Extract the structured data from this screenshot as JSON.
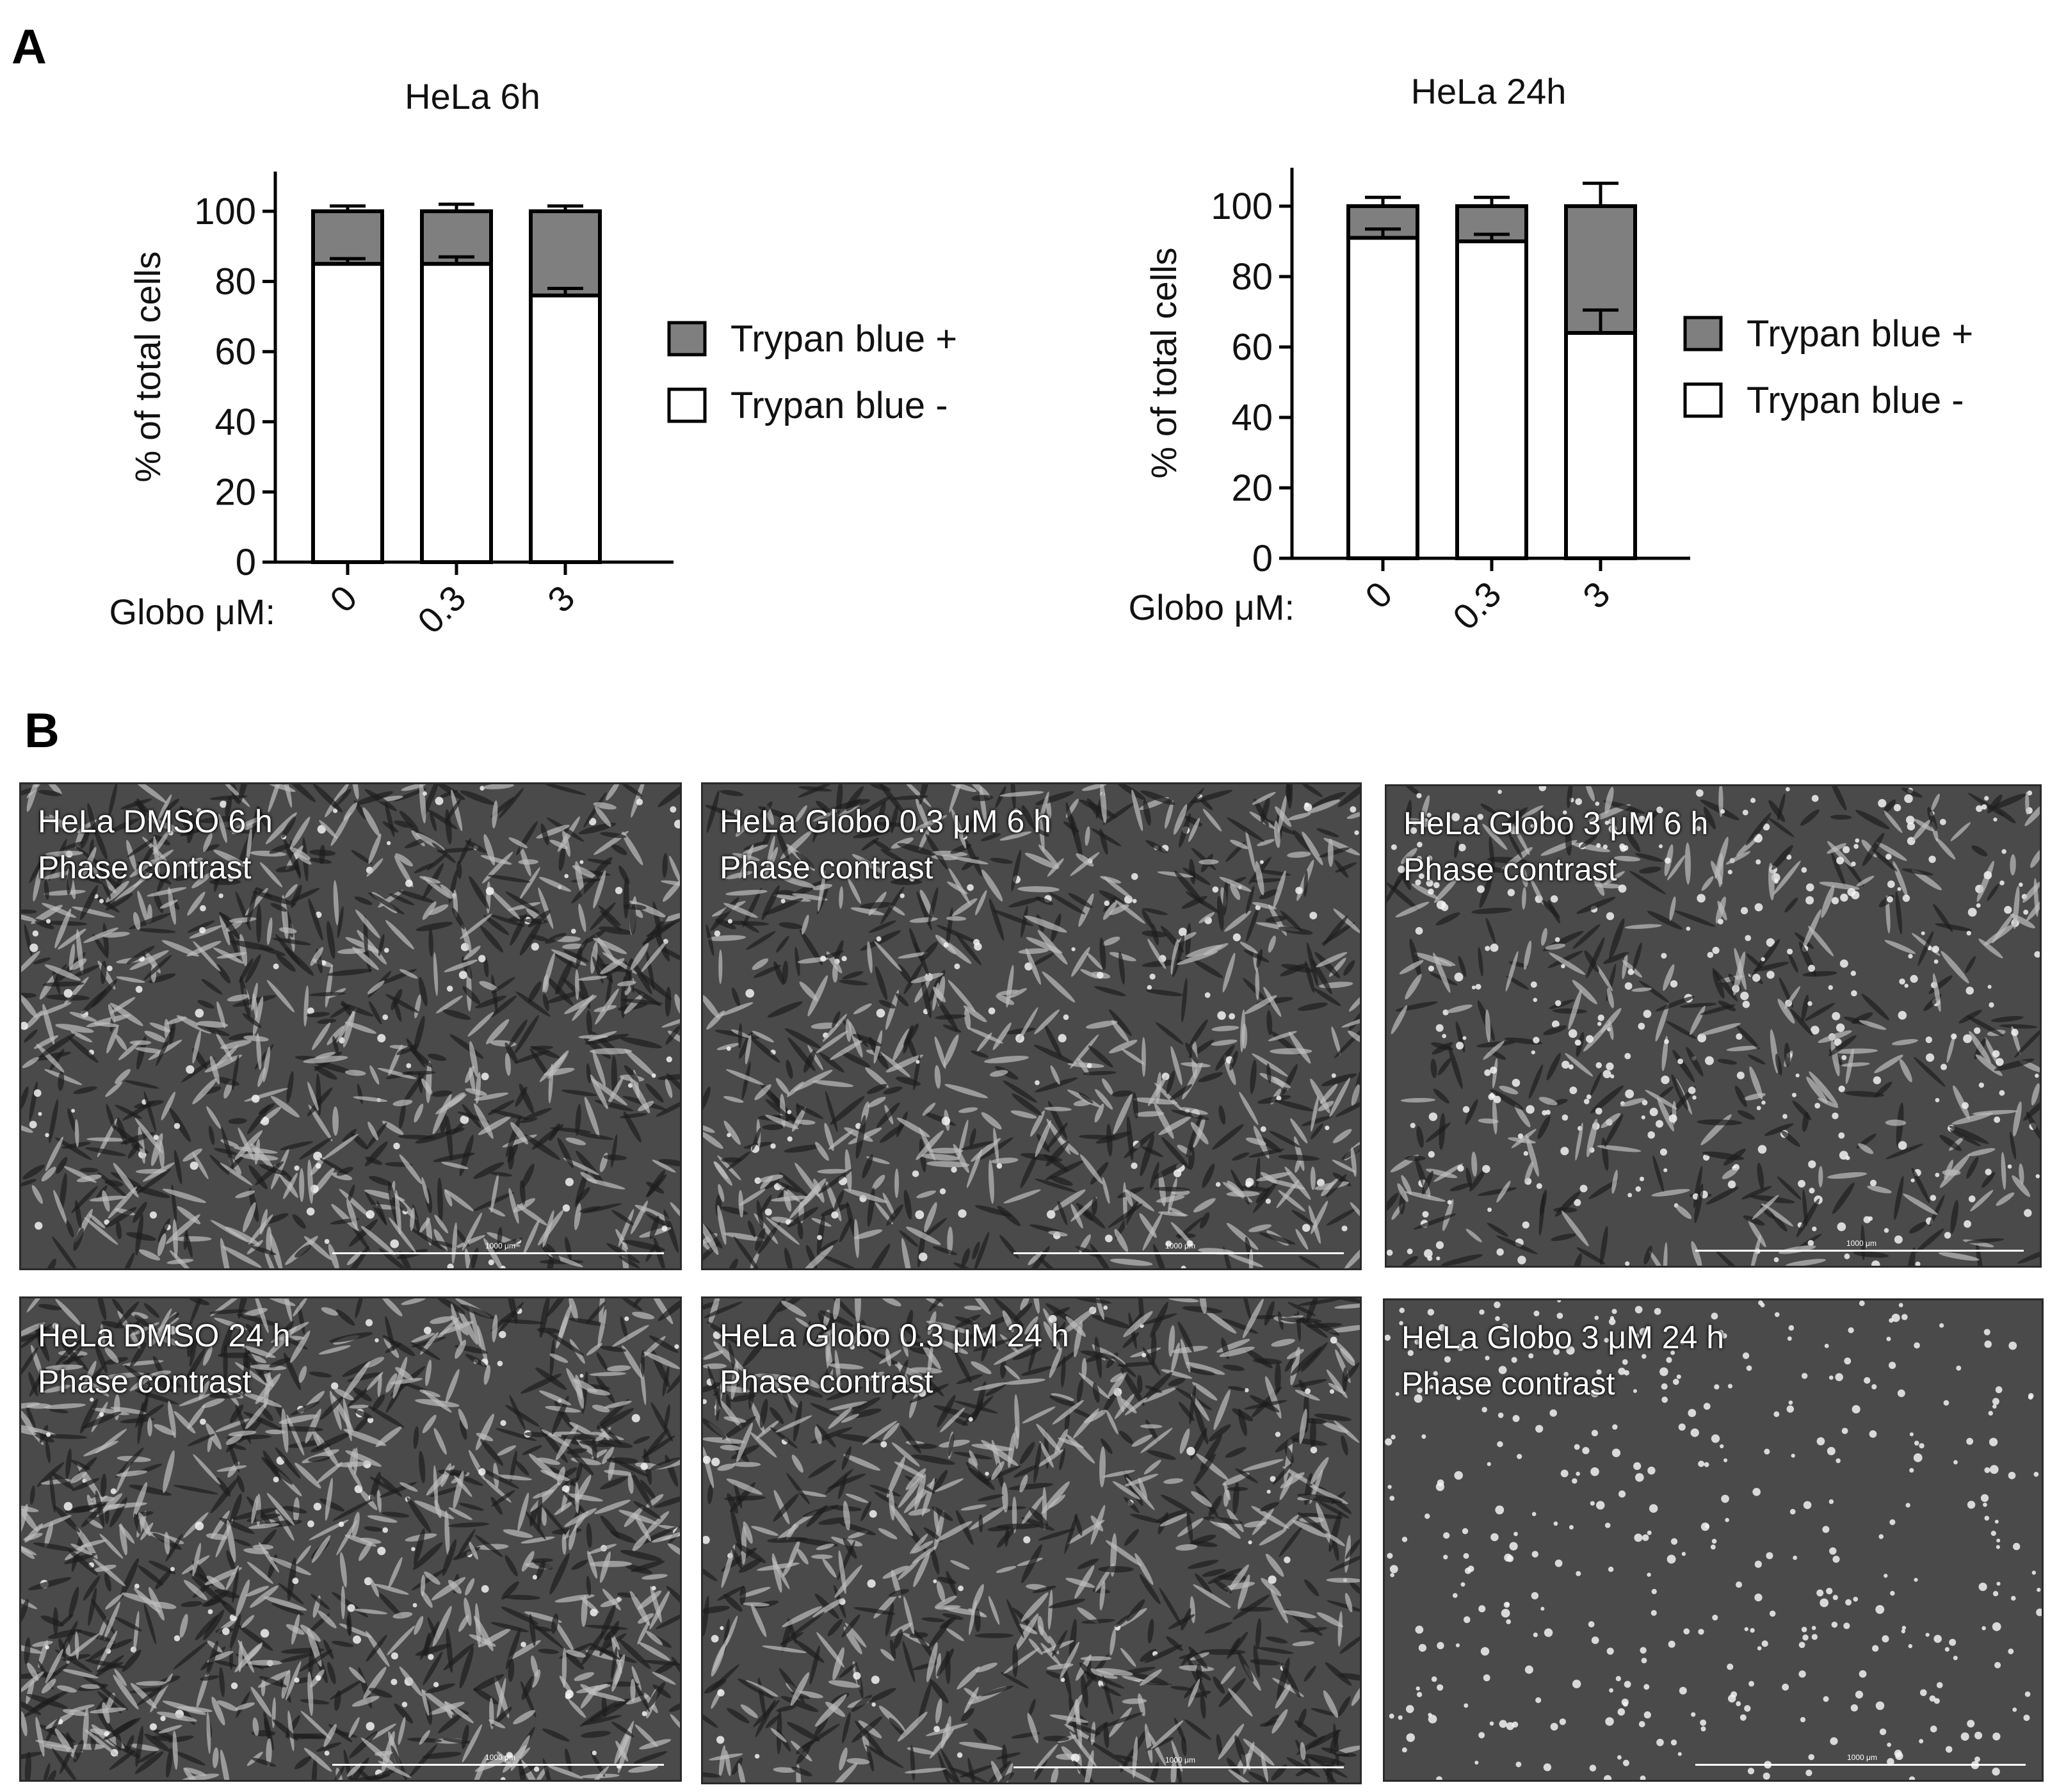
{
  "panel_labels": {
    "a": "A",
    "b": "B"
  },
  "legend": {
    "positive": "Trypan blue +",
    "negative": "Trypan blue -"
  },
  "colors": {
    "positive": "#7f7f7f",
    "negative": "#ffffff",
    "stroke": "#000000",
    "micro_bg": "#4a4a4a"
  },
  "chart_data": [
    {
      "type": "bar",
      "stacked": true,
      "title": "HeLa  6h",
      "ylabel": "% of total cells",
      "xlabel": "Globo μM:",
      "categories": [
        "0",
        "0.3",
        "3"
      ],
      "ylim": [
        0,
        100
      ],
      "yticks": [
        0,
        20,
        40,
        60,
        80,
        100
      ],
      "series": [
        {
          "name": "Trypan blue -",
          "values": [
            85,
            85,
            76
          ],
          "errors": [
            1.5,
            2,
            2
          ]
        },
        {
          "name": "Trypan blue +",
          "values": [
            15,
            15,
            24
          ],
          "errors": [
            1.5,
            2,
            1.5
          ]
        }
      ],
      "legend_position": "right"
    },
    {
      "type": "bar",
      "stacked": true,
      "title": "HeLa  24h",
      "ylabel": "% of total cells",
      "xlabel": "Globo μM:",
      "categories": [
        "0",
        "0.3",
        "3"
      ],
      "ylim": [
        0,
        100
      ],
      "yticks": [
        0,
        20,
        40,
        60,
        80,
        100
      ],
      "series": [
        {
          "name": "Trypan blue -",
          "values": [
            91,
            90,
            64
          ],
          "errors": [
            2.5,
            2,
            6.5
          ]
        },
        {
          "name": "Trypan blue +",
          "values": [
            9,
            10,
            36
          ],
          "errors": [
            2.5,
            2.5,
            6.5
          ]
        }
      ],
      "legend_position": "right"
    }
  ],
  "micrographs": [
    {
      "line1": "HeLa DMSO 6 h",
      "line2": "Phase contrast",
      "scale": "1000 μm",
      "density": 0.9,
      "round_fraction": 0.08
    },
    {
      "line1": "HeLa Globo 0.3 μM 6 h",
      "line2": "Phase contrast",
      "scale": "1000 μm",
      "density": 0.8,
      "round_fraction": 0.1
    },
    {
      "line1": "HeLa Globo 3 μM 6 h",
      "line2": "Phase contrast",
      "scale": "1000 μm",
      "density": 0.7,
      "round_fraction": 0.45
    },
    {
      "line1": "HeLa DMSO 24 h",
      "line2": "Phase contrast",
      "scale": "1000 μm",
      "density": 1.0,
      "round_fraction": 0.08
    },
    {
      "line1": "HeLa Globo 0.3 μM 24 h",
      "line2": "Phase contrast",
      "scale": "1000 μm",
      "density": 0.85,
      "round_fraction": 0.08
    },
    {
      "line1": "HeLa Globo 3 μM 24 h",
      "line2": "Phase contrast",
      "scale": "1000 μm",
      "density": 0.35,
      "round_fraction": 1.0
    }
  ]
}
